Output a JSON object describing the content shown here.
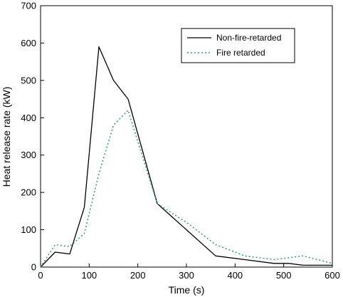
{
  "chart_data": {
    "type": "line",
    "xlabel": "Time (s)",
    "ylabel": "Heat release rate (kW)",
    "xlim": [
      0,
      600
    ],
    "ylim": [
      0,
      700
    ],
    "xticks": [
      0,
      100,
      200,
      300,
      400,
      500,
      600
    ],
    "yticks": [
      0,
      100,
      200,
      300,
      400,
      500,
      600,
      700
    ],
    "grid": false,
    "legend_position": "top-right",
    "series": [
      {
        "name": "Non-fire-retarded",
        "color": "#000000",
        "line_style": "solid",
        "x": [
          0,
          30,
          60,
          90,
          120,
          150,
          180,
          240,
          300,
          360,
          420,
          480,
          510,
          540,
          600
        ],
        "y": [
          0,
          40,
          35,
          160,
          590,
          500,
          450,
          170,
          100,
          30,
          20,
          10,
          10,
          5,
          5
        ]
      },
      {
        "name": "Fire retarded",
        "color": "#2e9c7a",
        "line_style": "dotted",
        "x": [
          0,
          30,
          60,
          90,
          120,
          150,
          180,
          240,
          300,
          360,
          420,
          480,
          510,
          540,
          600
        ],
        "y": [
          0,
          60,
          55,
          90,
          250,
          380,
          420,
          170,
          120,
          60,
          30,
          20,
          25,
          30,
          10
        ]
      }
    ]
  }
}
